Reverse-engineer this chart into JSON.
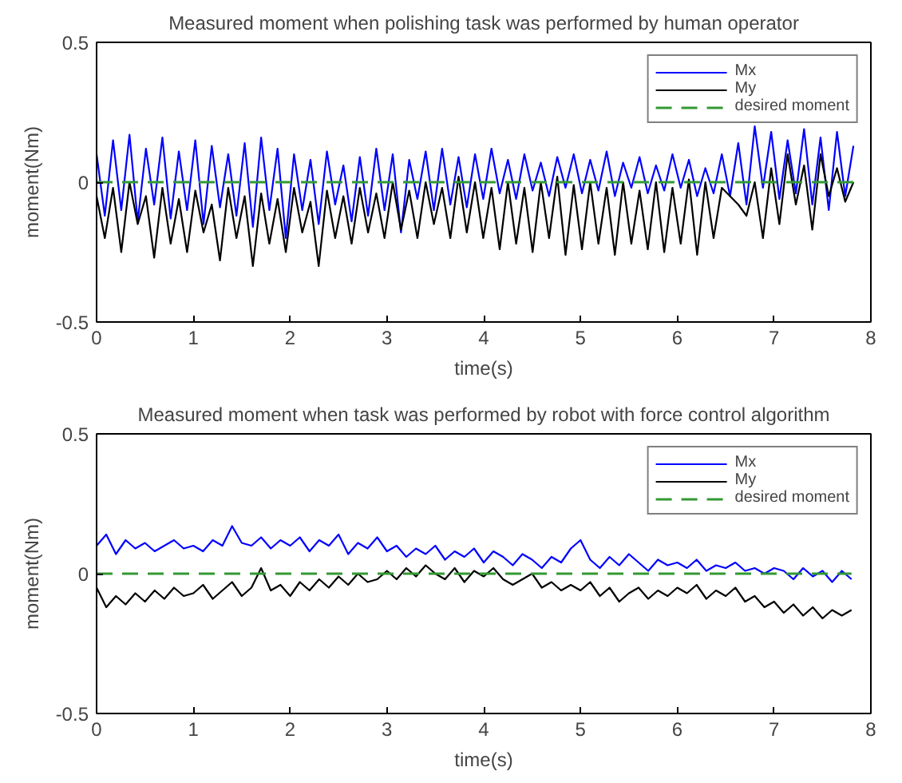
{
  "chart_data": [
    {
      "type": "line",
      "title": "Measured moment when polishing task was performed by human operator",
      "xlabel": "time(s)",
      "ylabel": "moment(Nm)",
      "x": [
        0,
        0.085,
        0.17,
        0.255,
        0.34,
        0.425,
        0.51,
        0.595,
        0.68,
        0.765,
        0.85,
        0.935,
        1.02,
        1.105,
        1.19,
        1.275,
        1.36,
        1.445,
        1.53,
        1.615,
        1.7,
        1.785,
        1.87,
        1.955,
        2.04,
        2.125,
        2.21,
        2.295,
        2.38,
        2.465,
        2.55,
        2.635,
        2.72,
        2.805,
        2.89,
        2.975,
        3.06,
        3.145,
        3.23,
        3.315,
        3.4,
        3.485,
        3.57,
        3.655,
        3.74,
        3.825,
        3.91,
        3.995,
        4.08,
        4.165,
        4.25,
        4.335,
        4.42,
        4.505,
        4.59,
        4.675,
        4.76,
        4.845,
        4.93,
        5.015,
        5.1,
        5.185,
        5.27,
        5.355,
        5.44,
        5.525,
        5.61,
        5.695,
        5.78,
        5.865,
        5.95,
        6.035,
        6.12,
        6.205,
        6.29,
        6.375,
        6.46,
        6.545,
        6.63,
        6.715,
        6.8,
        6.885,
        6.97,
        7.055,
        7.14,
        7.225,
        7.31,
        7.395,
        7.48,
        7.565,
        7.65,
        7.735,
        7.82
      ],
      "series": [
        {
          "name": "Mx",
          "color": "#0000ff",
          "values": [
            0.1,
            -0.12,
            0.15,
            -0.1,
            0.17,
            -0.14,
            0.12,
            -0.08,
            0.16,
            -0.13,
            0.11,
            -0.1,
            0.15,
            -0.15,
            0.13,
            -0.09,
            0.1,
            -0.12,
            0.14,
            -0.16,
            0.16,
            -0.1,
            0.12,
            -0.2,
            0.1,
            -0.1,
            0.08,
            -0.15,
            0.11,
            -0.08,
            0.06,
            -0.14,
            0.09,
            -0.12,
            0.12,
            -0.1,
            0.1,
            -0.18,
            0.08,
            -0.06,
            0.11,
            -0.1,
            0.12,
            -0.08,
            0.09,
            -0.09,
            0.1,
            -0.06,
            0.12,
            -0.04,
            0.08,
            -0.06,
            0.1,
            -0.03,
            0.07,
            -0.05,
            0.09,
            -0.02,
            0.1,
            -0.04,
            0.08,
            -0.03,
            0.11,
            -0.05,
            0.07,
            -0.02,
            0.09,
            -0.04,
            0.06,
            -0.03,
            0.1,
            -0.02,
            0.08,
            -0.05,
            0.05,
            -0.04,
            0.1,
            -0.05,
            0.14,
            -0.08,
            0.2,
            -0.02,
            0.18,
            -0.06,
            0.15,
            -0.04,
            0.19,
            -0.08,
            0.16,
            -0.1,
            0.18,
            -0.05,
            0.13
          ]
        },
        {
          "name": "My",
          "color": "#000000",
          "values": [
            -0.05,
            -0.2,
            -0.02,
            -0.25,
            0,
            -0.15,
            -0.05,
            -0.27,
            -0.02,
            -0.22,
            -0.06,
            -0.25,
            -0.03,
            -0.18,
            -0.08,
            -0.28,
            -0.02,
            -0.2,
            -0.05,
            -0.3,
            -0.04,
            -0.22,
            -0.06,
            -0.25,
            -0.02,
            -0.18,
            -0.07,
            -0.3,
            -0.03,
            -0.2,
            -0.05,
            -0.22,
            -0.02,
            -0.18,
            -0.04,
            -0.2,
            0,
            -0.17,
            -0.03,
            -0.2,
            0,
            -0.15,
            -0.02,
            -0.2,
            0.02,
            -0.18,
            0,
            -0.2,
            -0.02,
            -0.24,
            0,
            -0.22,
            -0.02,
            -0.25,
            0,
            -0.2,
            0.02,
            -0.26,
            -0.01,
            -0.24,
            0,
            -0.22,
            -0.02,
            -0.26,
            0,
            -0.22,
            -0.03,
            -0.24,
            0,
            -0.25,
            -0.02,
            -0.22,
            0.01,
            -0.26,
            0,
            -0.2,
            -0.02,
            -0.05,
            -0.08,
            -0.12,
            0,
            -0.2,
            0.05,
            -0.15,
            0.1,
            -0.08,
            0.06,
            -0.17,
            0.1,
            -0.05,
            0.05,
            -0.07,
            0
          ]
        },
        {
          "name": "desired moment",
          "color": "#339933",
          "line_style": "dashed",
          "values": [
            0,
            0,
            0,
            0,
            0,
            0,
            0,
            0,
            0,
            0,
            0,
            0,
            0,
            0,
            0,
            0,
            0,
            0,
            0,
            0,
            0,
            0,
            0,
            0,
            0,
            0,
            0,
            0,
            0,
            0,
            0,
            0,
            0,
            0,
            0,
            0,
            0,
            0,
            0,
            0,
            0,
            0,
            0,
            0,
            0,
            0,
            0,
            0,
            0,
            0,
            0,
            0,
            0,
            0,
            0,
            0,
            0,
            0,
            0,
            0,
            0,
            0,
            0,
            0,
            0,
            0,
            0,
            0,
            0,
            0,
            0,
            0,
            0,
            0,
            0,
            0,
            0,
            0,
            0,
            0,
            0,
            0,
            0,
            0,
            0,
            0,
            0,
            0,
            0,
            0,
            0,
            0,
            0
          ]
        }
      ],
      "xlim": [
        0,
        8
      ],
      "xticks": [
        0,
        1,
        2,
        3,
        4,
        5,
        6,
        7,
        8
      ],
      "ylim": [
        -0.5,
        0.5
      ],
      "yticks": [
        -0.5,
        0,
        0.5
      ],
      "grid": false,
      "legend": "top right",
      "line_style": "solid"
    },
    {
      "type": "line",
      "title": "Measured moment when task was performed by robot with force control algorithm",
      "xlabel": "time(s)",
      "ylabel": "moment(Nm)",
      "x": [
        0,
        0.1,
        0.2,
        0.3,
        0.4,
        0.5,
        0.6,
        0.7,
        0.8,
        0.9,
        1,
        1.1,
        1.2,
        1.3,
        1.4,
        1.5,
        1.6,
        1.7,
        1.8,
        1.9,
        2,
        2.1,
        2.2,
        2.3,
        2.4,
        2.5,
        2.6,
        2.7,
        2.8,
        2.9,
        3,
        3.1,
        3.2,
        3.3,
        3.4,
        3.5,
        3.6,
        3.7,
        3.8,
        3.9,
        4,
        4.1,
        4.2,
        4.3,
        4.4,
        4.5,
        4.6,
        4.7,
        4.8,
        4.9,
        5,
        5.1,
        5.2,
        5.3,
        5.4,
        5.5,
        5.6,
        5.7,
        5.8,
        5.9,
        6,
        6.1,
        6.2,
        6.3,
        6.4,
        6.5,
        6.6,
        6.7,
        6.8,
        6.9,
        7,
        7.1,
        7.2,
        7.3,
        7.4,
        7.5,
        7.6,
        7.7,
        7.8
      ],
      "series": [
        {
          "name": "Mx",
          "color": "#0000ff",
          "values": [
            0.1,
            0.14,
            0.07,
            0.12,
            0.09,
            0.11,
            0.08,
            0.1,
            0.12,
            0.09,
            0.1,
            0.08,
            0.12,
            0.1,
            0.17,
            0.11,
            0.1,
            0.13,
            0.09,
            0.12,
            0.1,
            0.13,
            0.08,
            0.12,
            0.1,
            0.14,
            0.07,
            0.11,
            0.09,
            0.13,
            0.08,
            0.1,
            0.06,
            0.09,
            0.07,
            0.1,
            0.05,
            0.08,
            0.06,
            0.09,
            0.04,
            0.08,
            0.06,
            0.03,
            0.07,
            0.05,
            0.02,
            0.06,
            0.04,
            0.09,
            0.12,
            0.05,
            0.02,
            0.06,
            0.03,
            0.07,
            0.04,
            0.01,
            0.05,
            0.03,
            0.04,
            0.02,
            0.05,
            0.01,
            0.03,
            0.02,
            0.04,
            0.01,
            0.02,
            0,
            0.02,
            0.01,
            -0.02,
            0.02,
            -0.01,
            0.01,
            -0.03,
            0.01,
            -0.02
          ]
        },
        {
          "name": "My",
          "color": "#000000",
          "values": [
            -0.05,
            -0.12,
            -0.08,
            -0.11,
            -0.07,
            -0.1,
            -0.06,
            -0.09,
            -0.05,
            -0.08,
            -0.07,
            -0.04,
            -0.09,
            -0.06,
            -0.03,
            -0.08,
            -0.05,
            0.02,
            -0.06,
            -0.04,
            -0.08,
            -0.03,
            -0.06,
            -0.02,
            -0.05,
            -0.01,
            -0.04,
            0,
            -0.03,
            -0.02,
            0.01,
            -0.02,
            0.02,
            -0.01,
            0.03,
            0,
            -0.02,
            0.02,
            -0.03,
            0.01,
            -0.01,
            0.02,
            -0.02,
            -0.04,
            -0.02,
            0,
            -0.05,
            -0.03,
            -0.06,
            -0.04,
            -0.06,
            -0.03,
            -0.08,
            -0.05,
            -0.1,
            -0.07,
            -0.05,
            -0.09,
            -0.06,
            -0.08,
            -0.05,
            -0.07,
            -0.04,
            -0.09,
            -0.06,
            -0.08,
            -0.05,
            -0.1,
            -0.08,
            -0.12,
            -0.1,
            -0.14,
            -0.11,
            -0.15,
            -0.12,
            -0.16,
            -0.13,
            -0.15,
            -0.13
          ]
        },
        {
          "name": "desired moment",
          "color": "#339933",
          "line_style": "dashed",
          "values": [
            0,
            0,
            0,
            0,
            0,
            0,
            0,
            0,
            0,
            0,
            0,
            0,
            0,
            0,
            0,
            0,
            0,
            0,
            0,
            0,
            0,
            0,
            0,
            0,
            0,
            0,
            0,
            0,
            0,
            0,
            0,
            0,
            0,
            0,
            0,
            0,
            0,
            0,
            0,
            0,
            0,
            0,
            0,
            0,
            0,
            0,
            0,
            0,
            0,
            0,
            0,
            0,
            0,
            0,
            0,
            0,
            0,
            0,
            0,
            0,
            0,
            0,
            0,
            0,
            0,
            0,
            0,
            0,
            0,
            0,
            0,
            0,
            0,
            0,
            0,
            0,
            0,
            0,
            0
          ]
        }
      ],
      "xlim": [
        0,
        8
      ],
      "xticks": [
        0,
        1,
        2,
        3,
        4,
        5,
        6,
        7,
        8
      ],
      "ylim": [
        -0.5,
        0.5
      ],
      "yticks": [
        -0.5,
        0,
        0.5
      ],
      "grid": false,
      "legend": "top right",
      "line_style": "solid"
    }
  ]
}
